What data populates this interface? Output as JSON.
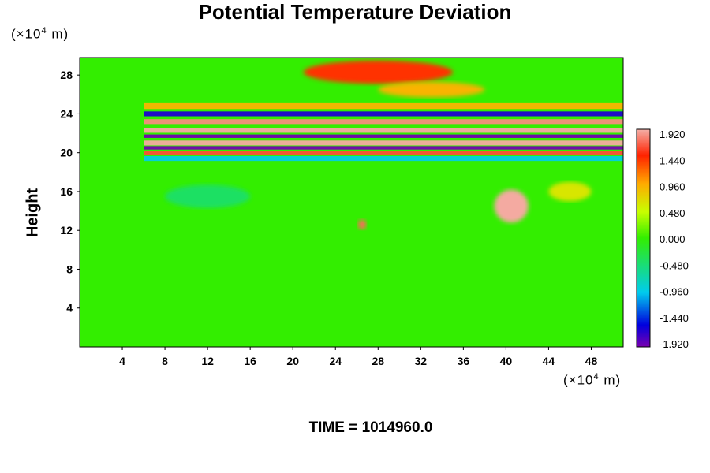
{
  "chart_data": {
    "type": "heatmap",
    "title": "Potential Temperature Deviation",
    "ylabel": "Height",
    "y_unit": {
      "prefix": "(×10",
      "exp": "4",
      "suffix": " m)"
    },
    "x_unit": {
      "prefix": "(×10",
      "exp": "4",
      "suffix": " m)"
    },
    "x_ticks": [
      "4",
      "8",
      "12",
      "16",
      "20",
      "24",
      "28",
      "32",
      "36",
      "40",
      "44",
      "48"
    ],
    "y_ticks": [
      "4",
      "8",
      "12",
      "16",
      "20",
      "24",
      "28"
    ],
    "xlim": [
      0,
      51
    ],
    "ylim": [
      0,
      29.8
    ],
    "colorbar": {
      "labels": [
        "1.920",
        "1.440",
        "0.960",
        "0.480",
        "0.000",
        "-0.480",
        "-0.960",
        "-1.440",
        "-1.920"
      ],
      "range": [
        -1.92,
        1.92
      ]
    },
    "features": [
      {
        "kind": "band",
        "y": 22.3,
        "width": 0.5,
        "value": 1.9
      },
      {
        "kind": "band",
        "y": 21.7,
        "width": 0.35,
        "value": -1.9
      },
      {
        "kind": "band",
        "y": 21.0,
        "width": 0.5,
        "value": 1.9
      },
      {
        "kind": "band",
        "y": 20.5,
        "width": 0.35,
        "value": -1.9
      },
      {
        "kind": "band",
        "y": 20.0,
        "width": 0.4,
        "value": 1.6
      },
      {
        "kind": "band",
        "y": 23.2,
        "width": 0.5,
        "value": 1.8
      },
      {
        "kind": "band",
        "y": 24.0,
        "width": 0.5,
        "value": -1.6
      },
      {
        "kind": "band",
        "y": 24.8,
        "width": 0.6,
        "value": 0.9
      },
      {
        "kind": "band",
        "y": 19.4,
        "width": 0.5,
        "value": -0.9
      },
      {
        "kind": "blob",
        "x": 28,
        "y": 28.3,
        "rx": 7,
        "ry": 1.2,
        "value": 1.4
      },
      {
        "kind": "blob",
        "x": 33,
        "y": 26.5,
        "rx": 5,
        "ry": 0.8,
        "value": 0.9
      },
      {
        "kind": "blob",
        "x": 40.5,
        "y": 14.5,
        "rx": 1.6,
        "ry": 1.7,
        "value": 1.9
      },
      {
        "kind": "blob",
        "x": 26.5,
        "y": 12.6,
        "rx": 0.4,
        "ry": 0.5,
        "value": 1.7
      },
      {
        "kind": "blob",
        "x": 46,
        "y": 16,
        "rx": 2,
        "ry": 1,
        "value": 0.6
      },
      {
        "kind": "blob",
        "x": 12,
        "y": 15.5,
        "rx": 4,
        "ry": 1.2,
        "value": -0.4
      }
    ],
    "time_label": "TIME = 1014960.0"
  }
}
